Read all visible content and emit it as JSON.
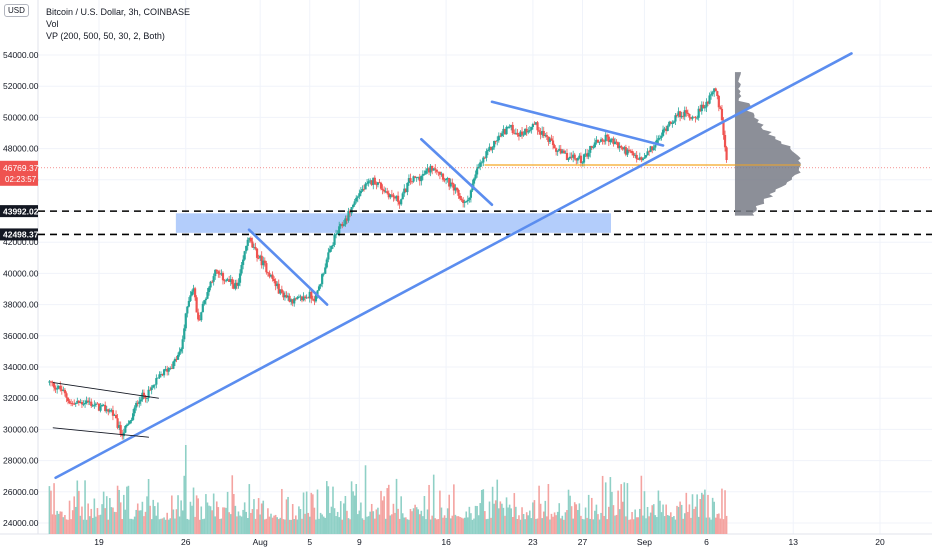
{
  "currency_badge": "USD",
  "legend": {
    "title": "Bitcoin / U.S. Dollar, 3h, COINBASE",
    "vol": "Vol",
    "vp": "VP (200, 500, 50, 30, 2, Both)"
  },
  "price_label": {
    "value": "46769.37",
    "countdown": "02:23:57"
  },
  "level_labels": [
    "43992.02",
    "42498.37"
  ],
  "colors": {
    "up": "#26a69a",
    "down": "#ef5350",
    "trend": "#5b8def",
    "zone": "#b3cdfb",
    "orange": "#f5a623",
    "profile": "#787b86"
  },
  "chart_data": {
    "type": "candlestick",
    "title": "Bitcoin / U.S. Dollar, 3h, COINBASE",
    "y_ticks": [
      24000,
      26000,
      28000,
      30000,
      32000,
      34000,
      36000,
      38000,
      40000,
      42000,
      44000,
      46000,
      48000,
      50000,
      52000,
      54000
    ],
    "y_tick_labels": [
      "24000.00",
      "26000.00",
      "28000.00",
      "30000.00",
      "32000.00",
      "34000.00",
      "36000.00",
      "38000.00",
      "40000.00",
      "42000.00",
      "44000.00",
      "46000.00",
      "48000.00",
      "50000.00",
      "52000.00",
      "54000.00"
    ],
    "ylim": [
      23000,
      56300
    ],
    "x_ticks": [
      "19",
      "26",
      "Aug",
      "5",
      "9",
      "16",
      "23",
      "27",
      "Sep",
      "6",
      "13",
      "20"
    ],
    "x_tick_days": [
      4,
      11,
      17,
      21,
      25,
      32,
      39,
      43,
      48,
      53,
      60,
      67
    ],
    "xlim_days": [
      0,
      70
    ],
    "x_origin": "2021-07-15",
    "last_price": 46769.37,
    "levels": [
      43992.02,
      42498.37
    ],
    "zone": {
      "start_day": 10.2,
      "end_day": 45.3,
      "low": 42600,
      "high": 43850
    },
    "orange_line": {
      "start_day": 35.1,
      "end_day": 57.5,
      "price": 46950
    },
    "trendlines": [
      {
        "x1": 0.5,
        "y1": 26900,
        "x2": 64.7,
        "y2": 54100
      },
      {
        "x1": 0.3,
        "y1": 33000,
        "x2": 8.8,
        "y2": 32000
      },
      {
        "x1": 0.3,
        "y1": 30100,
        "x2": 8.0,
        "y2": 29500
      },
      {
        "x1": 16.1,
        "y1": 42800,
        "x2": 22.4,
        "y2": 38000
      },
      {
        "x1": 30.0,
        "y1": 48600,
        "x2": 35.7,
        "y2": 44400
      },
      {
        "x1": 35.7,
        "y1": 51000,
        "x2": 49.5,
        "y2": 48200
      }
    ],
    "anchors": [
      [
        0.0,
        33000
      ],
      [
        1.0,
        32500
      ],
      [
        1.8,
        31600
      ],
      [
        3.0,
        31800
      ],
      [
        4.0,
        31400
      ],
      [
        5.0,
        31200
      ],
      [
        5.8,
        29700
      ],
      [
        6.5,
        30400
      ],
      [
        7.2,
        32000
      ],
      [
        8.0,
        32300
      ],
      [
        9.0,
        33500
      ],
      [
        10.0,
        34200
      ],
      [
        10.6,
        35000
      ],
      [
        11.2,
        38300
      ],
      [
        11.6,
        39200
      ],
      [
        12.0,
        36900
      ],
      [
        12.6,
        38500
      ],
      [
        13.3,
        40100
      ],
      [
        14.2,
        39600
      ],
      [
        15.2,
        39100
      ],
      [
        16.0,
        42300
      ],
      [
        16.5,
        41500
      ],
      [
        17.6,
        40200
      ],
      [
        18.6,
        38800
      ],
      [
        19.8,
        38200
      ],
      [
        21.0,
        38600
      ],
      [
        21.5,
        38400
      ],
      [
        22.2,
        40400
      ],
      [
        23.0,
        42300
      ],
      [
        24.0,
        43600
      ],
      [
        25.0,
        45200
      ],
      [
        26.2,
        46000
      ],
      [
        27.2,
        45200
      ],
      [
        28.3,
        44600
      ],
      [
        29.0,
        45900
      ],
      [
        30.0,
        46200
      ],
      [
        31.0,
        46900
      ],
      [
        31.6,
        46400
      ],
      [
        32.6,
        45400
      ],
      [
        33.6,
        44400
      ],
      [
        34.6,
        46800
      ],
      [
        36.0,
        48500
      ],
      [
        37.0,
        49400
      ],
      [
        38.0,
        48900
      ],
      [
        39.1,
        49600
      ],
      [
        40.0,
        48800
      ],
      [
        41.0,
        47800
      ],
      [
        42.0,
        47400
      ],
      [
        43.0,
        47300
      ],
      [
        44.0,
        48400
      ],
      [
        45.0,
        48700
      ],
      [
        46.0,
        48100
      ],
      [
        47.0,
        47600
      ],
      [
        47.8,
        47200
      ],
      [
        49.0,
        48400
      ],
      [
        50.0,
        49700
      ],
      [
        51.0,
        50300
      ],
      [
        52.0,
        50000
      ],
      [
        53.0,
        50900
      ],
      [
        53.6,
        52000
      ],
      [
        54.2,
        50100
      ],
      [
        54.7,
        46769
      ]
    ],
    "volume_spikes": [
      [
        11.0,
        29000
      ],
      [
        25.5,
        27700
      ],
      [
        24.8,
        26500
      ],
      [
        31.0,
        27100
      ],
      [
        54.5,
        26100
      ]
    ],
    "volume_profile": {
      "x_start_day": 55.3,
      "x_end_day": 60.6,
      "price_low": 43700,
      "price_high": 52900,
      "poc_price": 46950
    }
  }
}
